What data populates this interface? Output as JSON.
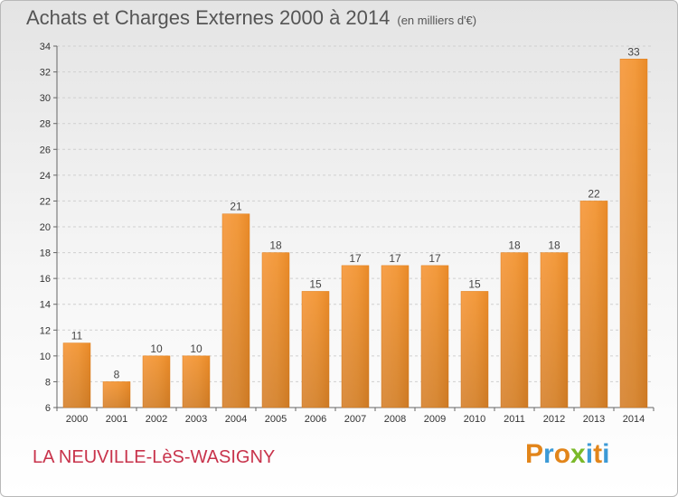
{
  "title": "Achats et Charges Externes 2000 à 2014",
  "unit": "(en milliers d'€)",
  "commune": "LA NEUVILLE-LèS-WASIGNY",
  "logo": {
    "letters": [
      "P",
      "r",
      "o",
      "x",
      "i",
      "t",
      "i"
    ],
    "colors": [
      "#e2851a",
      "#3c9ad6",
      "#e2851a",
      "#7ab929",
      "#3c9ad6",
      "#e2851a",
      "#3c9ad6"
    ]
  },
  "chart_data": {
    "type": "bar",
    "title": "Achats et Charges Externes 2000 à 2014",
    "subtitle": "(en milliers d'€)",
    "categories": [
      "2000",
      "2001",
      "2002",
      "2003",
      "2004",
      "2005",
      "2006",
      "2007",
      "2008",
      "2009",
      "2010",
      "2011",
      "2012",
      "2013",
      "2014"
    ],
    "values": [
      11,
      8,
      10,
      10,
      21,
      18,
      15,
      17,
      17,
      17,
      15,
      18,
      18,
      22,
      33
    ],
    "ylim": [
      6,
      34
    ],
    "yticks": [
      6,
      8,
      10,
      12,
      14,
      16,
      18,
      20,
      22,
      24,
      26,
      28,
      30,
      32,
      34
    ],
    "grid": true,
    "bar_color": "#f39a3c"
  }
}
